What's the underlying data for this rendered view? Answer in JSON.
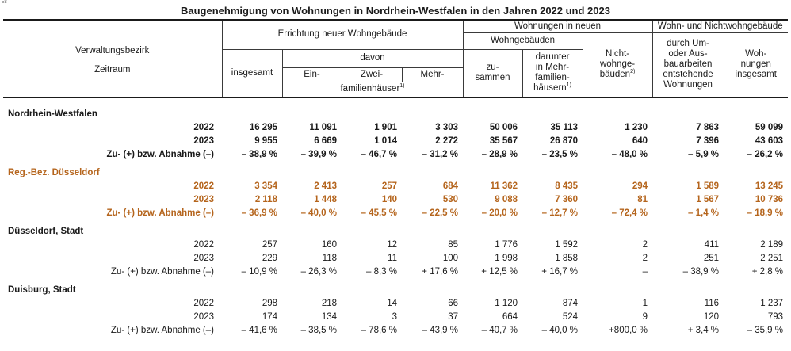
{
  "title": "Baugenehmigung von Wohnungen in Nordrhein-Westfalen in den Jahren 2022 und 2023",
  "corner_mark": "58",
  "header": {
    "stub_top": "Verwaltungsbezirk",
    "stub_bottom": "Zeitraum",
    "group_errichtung": "Errichtung neuer Wohngebäude",
    "group_wohnungen_neuen": "Wohnungen in neuen",
    "group_wohn_nicht": "Wohn- und Nichtwohngebäude",
    "sub_davon": "davon",
    "sub_wohngebaeuden": "Wohngebäuden",
    "col_insgesamt": "insgesamt",
    "col_ein": "Ein-",
    "col_zwei": "Zwei-",
    "col_mehr": "Mehr-",
    "familienhaeuser": "familienhäuser",
    "footnote1": "1)",
    "footnote2": "2)",
    "col_zusammen_1": "zu-",
    "col_zusammen_2": "sammen",
    "col_darunter_1": "darunter",
    "col_darunter_2": "in Mehr-",
    "col_darunter_3": "familien-",
    "col_darunter_4": "häusern",
    "col_nichtwohn_1": "Nicht-",
    "col_nichtwohn_2": "wohnge-",
    "col_nichtwohn_3": "bäuden",
    "col_umbau_1": "durch Um-",
    "col_umbau_2": "oder Aus-",
    "col_umbau_3": "bauarbeiten",
    "col_umbau_4": "entstehende",
    "col_umbau_5": "Wohnungen",
    "col_wohn_ins_1": "Woh-",
    "col_wohn_ins_2": "nungen",
    "col_wohn_ins_3": "insgesamt"
  },
  "sections": [
    {
      "name": "Nordrhein-Westfalen",
      "style": "bold",
      "rows": [
        {
          "label": "2022",
          "values": [
            "16 295",
            "11 091",
            "1 901",
            "3 303",
            "50 006",
            "35 113",
            "1 230",
            "7 863",
            "59 099"
          ]
        },
        {
          "label": "2023",
          "values": [
            "9 955",
            "6 669",
            "1 014",
            "2 272",
            "35 567",
            "26 870",
            "640",
            "7 396",
            "43 603"
          ]
        },
        {
          "label": "Zu- (+) bzw. Abnahme (–)",
          "values": [
            "– 38,9 %",
            "– 39,9 %",
            "– 46,7 %",
            "– 31,2 %",
            "– 28,9 %",
            "– 23,5 %",
            "– 48,0 %",
            "– 5,9 %",
            "– 26,2 %"
          ]
        }
      ]
    },
    {
      "name": "Reg.-Bez. Düsseldorf",
      "style": "orange",
      "rows": [
        {
          "label": "2022",
          "values": [
            "3 354",
            "2 413",
            "257",
            "684",
            "11 362",
            "8 435",
            "294",
            "1 589",
            "13 245"
          ]
        },
        {
          "label": "2023",
          "values": [
            "2 118",
            "1 448",
            "140",
            "530",
            "9 088",
            "7 360",
            "81",
            "1 567",
            "10 736"
          ]
        },
        {
          "label": "Zu- (+) bzw. Abnahme (–)",
          "values": [
            "– 36,9 %",
            "– 40,0 %",
            "– 45,5 %",
            "– 22,5 %",
            "– 20,0 %",
            "– 12,7 %",
            "– 72,4 %",
            "– 1,4 %",
            "– 18,9 %"
          ]
        }
      ]
    },
    {
      "name": "Düsseldorf, Stadt",
      "style": "plain",
      "rows": [
        {
          "label": "2022",
          "values": [
            "257",
            "160",
            "12",
            "85",
            "1 776",
            "1 592",
            "2",
            "411",
            "2 189"
          ]
        },
        {
          "label": "2023",
          "values": [
            "229",
            "118",
            "11",
            "100",
            "1 998",
            "1 858",
            "2",
            "251",
            "2 251"
          ]
        },
        {
          "label": "Zu- (+) bzw. Abnahme (–)",
          "values": [
            "– 10,9 %",
            "– 26,3 %",
            "– 8,3 %",
            "+ 17,6 %",
            "+ 12,5 %",
            "+ 16,7 %",
            "–",
            "– 38,9 %",
            "+ 2,8 %"
          ]
        }
      ]
    },
    {
      "name": "Duisburg, Stadt",
      "style": "plain",
      "rows": [
        {
          "label": "2022",
          "values": [
            "298",
            "218",
            "14",
            "66",
            "1 120",
            "874",
            "1",
            "116",
            "1 237"
          ]
        },
        {
          "label": "2023",
          "values": [
            "174",
            "134",
            "3",
            "37",
            "664",
            "524",
            "9",
            "120",
            "793"
          ]
        },
        {
          "label": "Zu- (+) bzw. Abnahme (–)",
          "values": [
            "– 41,6 %",
            "– 38,5 %",
            "– 78,6 %",
            "– 43,9 %",
            "– 40,7 %",
            "– 40,0 %",
            "+800,0 %",
            "+ 3,4 %",
            "– 35,9 %"
          ]
        }
      ]
    }
  ]
}
